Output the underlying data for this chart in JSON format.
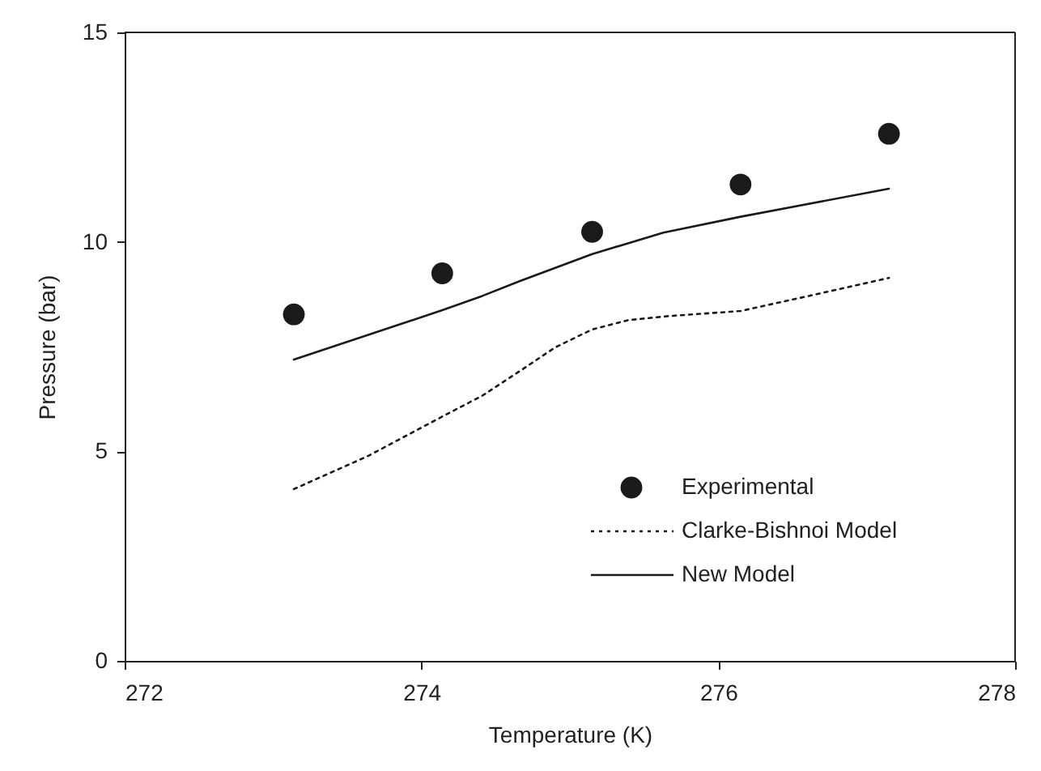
{
  "chart_data": {
    "type": "line",
    "xlabel": "Temperature (K)",
    "ylabel": "Pressure (bar)",
    "xlim": [
      272,
      278
    ],
    "xticks": [
      272,
      274,
      276,
      278
    ],
    "ylim": [
      0,
      15
    ],
    "yticks": [
      0,
      5,
      10,
      15
    ],
    "grid": false,
    "legend": "bottom right",
    "series": [
      {
        "name": "Experimental",
        "type": "scatter",
        "marker": "circle",
        "color": "#1a1a1a",
        "x": [
          273.14,
          274.14,
          275.15,
          276.15,
          277.15
        ],
        "values": [
          8.27,
          9.25,
          10.24,
          11.37,
          12.58
        ]
      },
      {
        "name": "Clarke-Bishnoi Model",
        "type": "line",
        "line_style": "dotted",
        "color": "#1a1a1a",
        "x": [
          273.14,
          273.64,
          274.14,
          274.41,
          274.66,
          274.9,
          275.15,
          275.39,
          275.67,
          276.15,
          276.61,
          277.15
        ],
        "values": [
          4.1,
          4.89,
          5.83,
          6.33,
          6.91,
          7.48,
          7.91,
          8.13,
          8.23,
          8.35,
          8.71,
          9.14
        ]
      },
      {
        "name": "New Model",
        "type": "line",
        "line_style": "solid",
        "color": "#1a1a1a",
        "x": [
          273.14,
          274.14,
          274.41,
          274.66,
          275.15,
          275.63,
          276.15,
          277.15
        ],
        "values": [
          7.19,
          8.37,
          8.71,
          9.06,
          9.71,
          10.22,
          10.6,
          11.27
        ]
      }
    ]
  }
}
